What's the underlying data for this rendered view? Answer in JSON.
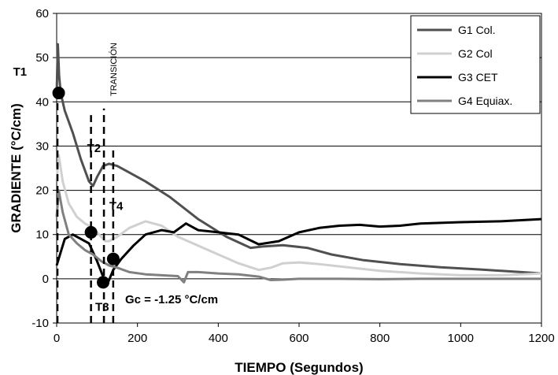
{
  "chart_data": {
    "type": "line",
    "xlabel": "TIEMPO (Segundos)",
    "ylabel": "GRADIENTE (°C/cm)",
    "xlim": [
      0,
      1200
    ],
    "ylim": [
      -10,
      60
    ],
    "xticks": [
      0,
      200,
      400,
      600,
      800,
      1000,
      1200
    ],
    "yticks": [
      -10,
      0,
      10,
      20,
      30,
      40,
      50,
      60
    ],
    "grid": "horizontal",
    "legend_position": "top-right",
    "series": [
      {
        "name": "G1 Col.",
        "color": "#505050",
        "x": [
          0,
          3,
          6,
          10,
          20,
          40,
          60,
          80,
          90,
          100,
          115,
          130,
          150,
          180,
          220,
          280,
          350,
          420,
          480,
          510,
          560,
          620,
          680,
          760,
          850,
          950,
          1050,
          1150,
          1200
        ],
        "y": [
          42,
          53,
          46,
          42,
          38,
          33,
          27,
          22,
          21,
          23,
          25.5,
          26,
          25.5,
          24,
          22,
          18.5,
          13.5,
          9.5,
          7,
          7.3,
          7.6,
          7,
          5.5,
          4.2,
          3.3,
          2.6,
          2.1,
          1.5,
          1.2
        ]
      },
      {
        "name": "G2 Col",
        "color": "#d0d0d0",
        "x": [
          0,
          5,
          15,
          30,
          50,
          70,
          90,
          100,
          110,
          120,
          130,
          150,
          180,
          220,
          260,
          300,
          350,
          400,
          450,
          500,
          530,
          560,
          600,
          650,
          700,
          800,
          900,
          1000,
          1100,
          1200
        ],
        "y": [
          22,
          28,
          22,
          17,
          14,
          12.5,
          11.5,
          10.5,
          9.5,
          8.5,
          8.5,
          9.5,
          11.5,
          13,
          12,
          9.5,
          7.5,
          5.5,
          3.5,
          2,
          2.5,
          3.5,
          3.7,
          3.3,
          2.8,
          1.8,
          1.2,
          0.8,
          0.8,
          1.2
        ]
      },
      {
        "name": "G3 CET",
        "color": "#000000",
        "x": [
          0,
          10,
          20,
          40,
          60,
          80,
          100,
          115,
          125,
          140,
          160,
          190,
          220,
          260,
          290,
          320,
          350,
          400,
          450,
          500,
          550,
          600,
          650,
          700,
          750,
          800,
          850,
          900,
          1000,
          1100,
          1200
        ],
        "y": [
          3,
          6,
          9,
          10,
          9,
          8,
          4,
          0.5,
          -1.3,
          2,
          4.5,
          7.5,
          10,
          11,
          10.5,
          12.5,
          11,
          10.5,
          10,
          7.8,
          8.5,
          10.5,
          11.5,
          12,
          12.2,
          11.8,
          12,
          12.5,
          12.8,
          13,
          13.5
        ]
      },
      {
        "name": "G4 Equiax.",
        "color": "#808080",
        "x": [
          0,
          5,
          15,
          30,
          50,
          70,
          90,
          110,
          130,
          150,
          180,
          220,
          260,
          300,
          315,
          325,
          350,
          400,
          450,
          500,
          530,
          560,
          600,
          700,
          800,
          900,
          1000,
          1100,
          1200
        ],
        "y": [
          14,
          20,
          15,
          10,
          8,
          6.5,
          5.5,
          4,
          3,
          2.5,
          1.5,
          1,
          0.8,
          0.6,
          -0.8,
          1.5,
          1.5,
          1.2,
          1,
          0.5,
          -0.3,
          -0.2,
          0,
          0,
          -0.1,
          0,
          0,
          0,
          0
        ]
      }
    ],
    "markers": [
      {
        "label": "T1",
        "x": 5,
        "y": 42
      },
      {
        "label": "T2",
        "x": 85,
        "y": 10.5
      },
      {
        "label": "T3",
        "x": 115,
        "y": -0.8
      },
      {
        "label": "T4",
        "x": 140,
        "y": 4.5
      }
    ],
    "dashed_verticals": [
      {
        "x": 2,
        "y_top": 42
      },
      {
        "x": 85,
        "y_top": 37
      },
      {
        "x": 117,
        "y_top": 38.5
      },
      {
        "x": 140,
        "y_top": 29
      }
    ],
    "annotations": {
      "transition": "TRANSICIÓN",
      "gc": "Gc = -1.25 °C/cm"
    }
  }
}
